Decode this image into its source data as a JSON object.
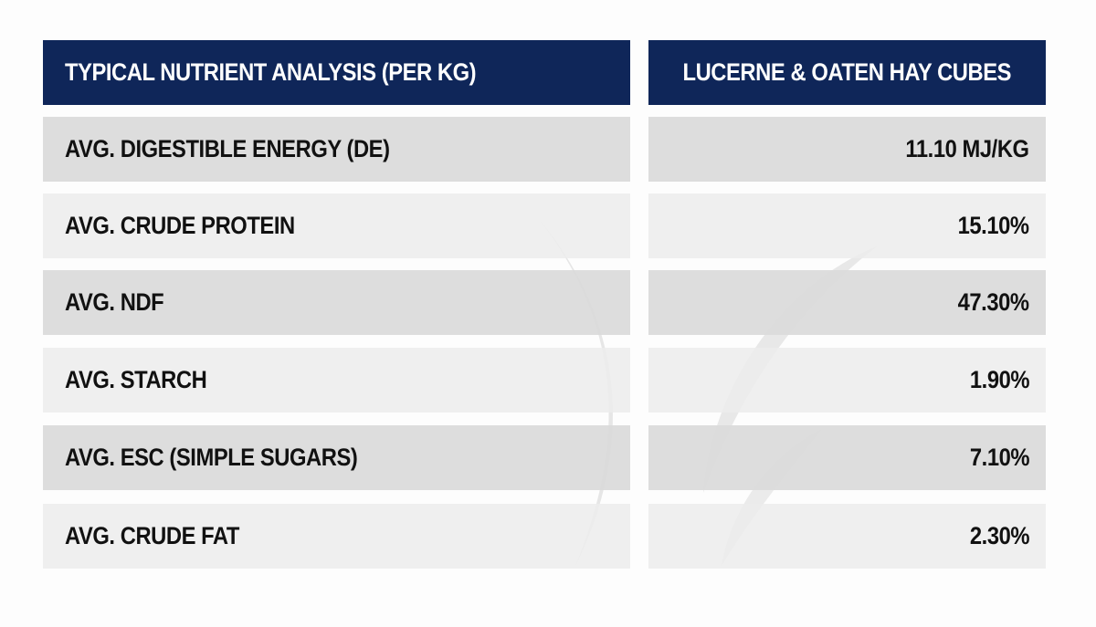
{
  "table": {
    "header": [
      "TYPICAL NUTRIENT ANALYSIS (PER KG)",
      "LUCERNE & OATEN HAY CUBES"
    ],
    "rows": [
      [
        "AVG. DIGESTIBLE ENERGY (DE)",
        "11.10 MJ/KG"
      ],
      [
        "AVG. CRUDE PROTEIN",
        "15.10%"
      ],
      [
        "AVG. NDF",
        "47.30%"
      ],
      [
        "AVG. STARCH",
        "1.90%"
      ],
      [
        "AVG. ESC (SIMPLE SUGARS)",
        "7.10%"
      ],
      [
        "AVG. CRUDE FAT",
        "2.30%"
      ]
    ]
  }
}
